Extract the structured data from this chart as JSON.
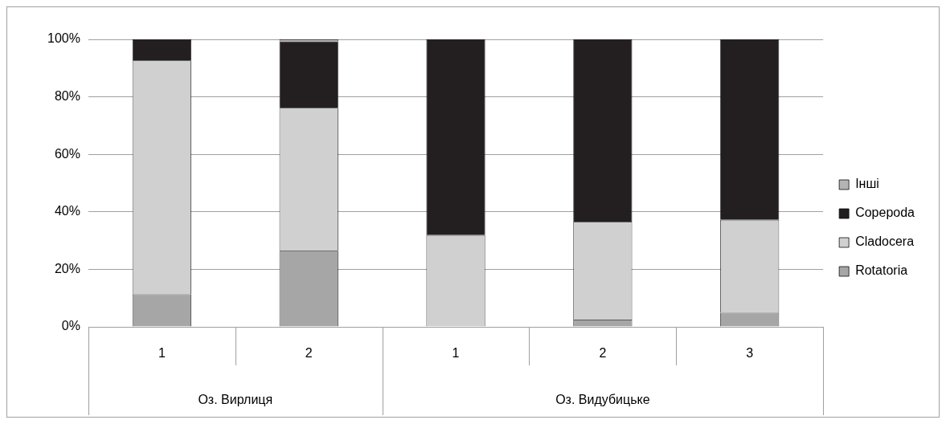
{
  "chart_data": {
    "type": "bar",
    "stacked": true,
    "categories": [
      "1",
      "2",
      "1",
      "2",
      "3"
    ],
    "annotations": [
      "Оз. Вирлиця",
      "Оз. Видубицьке"
    ],
    "series": [
      {
        "name": "Rotatoria",
        "color": "#a6a6a6",
        "values": [
          11.3,
          26.5,
          0,
          2.5,
          4.9
        ]
      },
      {
        "name": "Cladocera",
        "color": "#d0d0d0",
        "values": [
          81.4,
          49.7,
          31.9,
          34.1,
          32.3
        ]
      },
      {
        "name": "Copepoda",
        "color": "#231f20",
        "values": [
          7.3,
          23.1,
          68.1,
          63.4,
          62.8
        ]
      },
      {
        "name": "Інші",
        "color": "#b4b4b4",
        "values": [
          0,
          0.7,
          0,
          0,
          0
        ]
      }
    ],
    "ylim": [
      0,
      100
    ],
    "yticks": [
      {
        "value": 0,
        "label": "0%"
      },
      {
        "value": 20,
        "label": "20%"
      },
      {
        "value": 40,
        "label": "40%"
      },
      {
        "value": 60,
        "label": "60%"
      },
      {
        "value": 80,
        "label": "80%"
      },
      {
        "value": 100,
        "label": "100%"
      }
    ],
    "grid": "y",
    "legend": "right"
  }
}
